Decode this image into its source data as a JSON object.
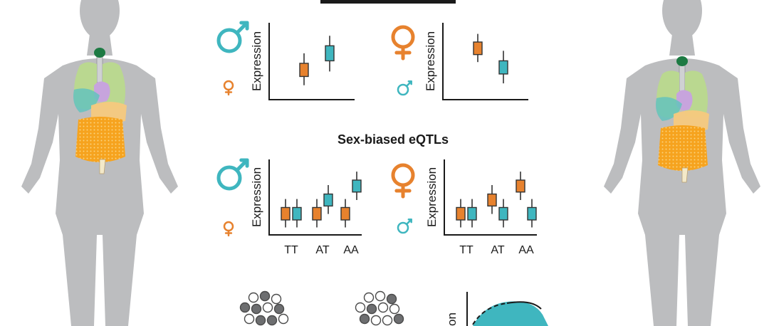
{
  "section_title": "Sex-biased eQTLs",
  "colors": {
    "male": "#3fb6bf",
    "female": "#e7822e",
    "silhouette": "#bcbdbf",
    "axis": "#1a1a1a",
    "dot_dark": "#6d6e70"
  },
  "panels": {
    "male_biased_expression": {
      "ylabel": "Expression",
      "main_symbol": "male",
      "small_symbol": "female",
      "boxes": [
        {
          "sex": "female",
          "q1": 0.37,
          "q3": 0.58,
          "lo": 0.23,
          "hi": 0.74
        },
        {
          "sex": "male",
          "q1": 0.62,
          "q3": 0.86,
          "lo": 0.45,
          "hi": 1.02
        }
      ]
    },
    "female_biased_expression": {
      "ylabel": "Expression",
      "main_symbol": "female",
      "small_symbol": "male",
      "boxes": [
        {
          "sex": "female",
          "q1": 0.72,
          "q3": 0.92,
          "lo": 0.6,
          "hi": 1.05
        },
        {
          "sex": "male",
          "q1": 0.41,
          "q3": 0.62,
          "lo": 0.26,
          "hi": 0.78
        }
      ]
    },
    "male_biased_eqtl": {
      "ylabel": "Expression",
      "main_symbol": "male",
      "small_symbol": "female",
      "genotypes": [
        "TT",
        "AT",
        "AA"
      ],
      "groups": [
        [
          {
            "sex": "female",
            "q1": 0.3,
            "q3": 0.55,
            "lo": 0.15,
            "hi": 0.72
          },
          {
            "sex": "male",
            "q1": 0.3,
            "q3": 0.55,
            "lo": 0.15,
            "hi": 0.72
          }
        ],
        [
          {
            "sex": "female",
            "q1": 0.3,
            "q3": 0.55,
            "lo": 0.15,
            "hi": 0.72
          },
          {
            "sex": "male",
            "q1": 0.58,
            "q3": 0.82,
            "lo": 0.42,
            "hi": 1.0
          }
        ],
        [
          {
            "sex": "female",
            "q1": 0.3,
            "q3": 0.55,
            "lo": 0.15,
            "hi": 0.72
          },
          {
            "sex": "male",
            "q1": 0.86,
            "q3": 1.1,
            "lo": 0.7,
            "hi": 1.27
          }
        ]
      ]
    },
    "female_biased_eqtl": {
      "ylabel": "Expression",
      "main_symbol": "female",
      "small_symbol": "male",
      "genotypes": [
        "TT",
        "AT",
        "AA"
      ],
      "groups": [
        [
          {
            "sex": "female",
            "q1": 0.3,
            "q3": 0.55,
            "lo": 0.15,
            "hi": 0.72
          },
          {
            "sex": "male",
            "q1": 0.3,
            "q3": 0.55,
            "lo": 0.15,
            "hi": 0.72
          }
        ],
        [
          {
            "sex": "female",
            "q1": 0.58,
            "q3": 0.82,
            "lo": 0.42,
            "hi": 1.0
          },
          {
            "sex": "male",
            "q1": 0.3,
            "q3": 0.55,
            "lo": 0.15,
            "hi": 0.72
          }
        ],
        [
          {
            "sex": "female",
            "q1": 0.86,
            "q3": 1.1,
            "lo": 0.7,
            "hi": 1.27
          },
          {
            "sex": "male",
            "q1": 0.3,
            "q3": 0.55,
            "lo": 0.15,
            "hi": 0.72
          }
        ]
      ]
    },
    "bottom_partial": {
      "ylabel_fragment": "on"
    }
  }
}
